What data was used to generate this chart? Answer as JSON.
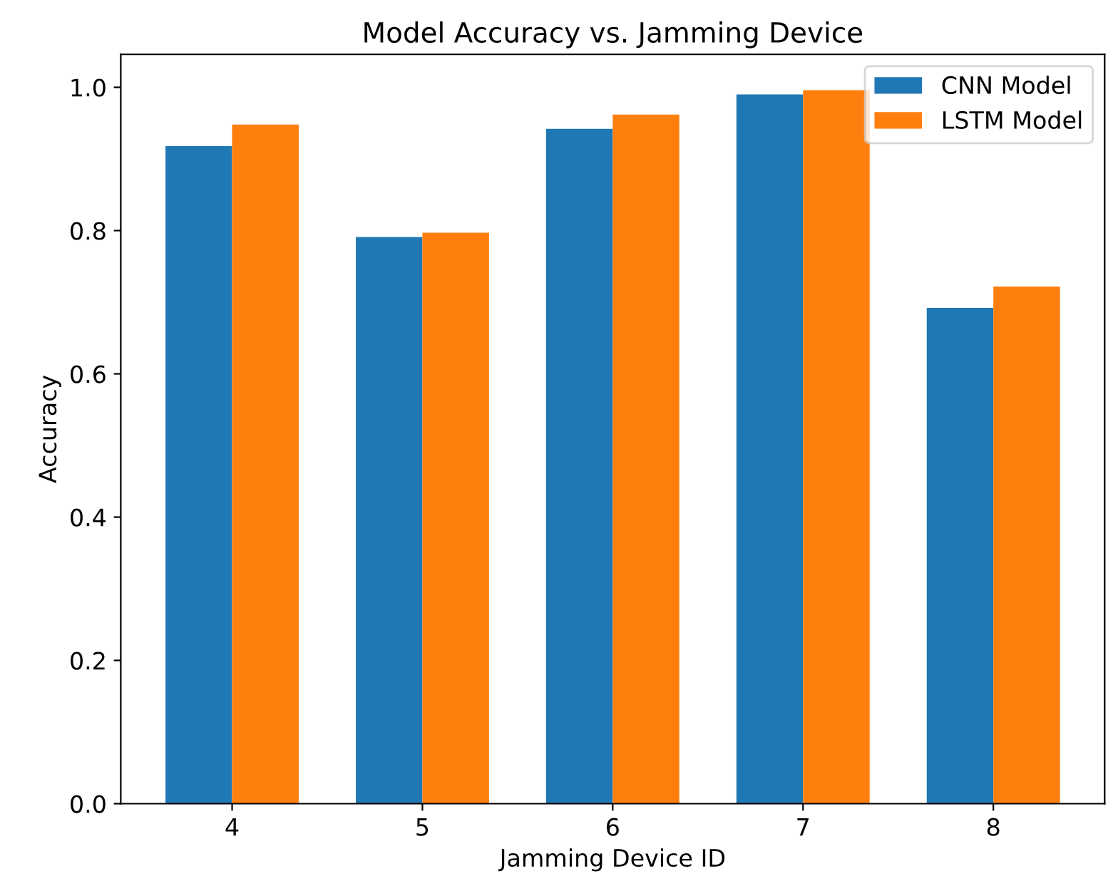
{
  "chart_data": {
    "type": "bar",
    "title": "Model Accuracy vs. Jamming Device",
    "xlabel": "Jamming Device ID",
    "ylabel": "Accuracy",
    "categories": [
      "4",
      "5",
      "6",
      "7",
      "8"
    ],
    "series": [
      {
        "name": "CNN Model",
        "color": "#1f77b4",
        "values": [
          0.918,
          0.791,
          0.942,
          0.99,
          0.692
        ]
      },
      {
        "name": "LSTM Model",
        "color": "#ff7f0e",
        "values": [
          0.948,
          0.797,
          0.962,
          0.996,
          0.722
        ]
      }
    ],
    "ylim": [
      0,
      1.046
    ],
    "yticks": [
      {
        "value": 0,
        "label": "0.0"
      },
      {
        "value": 0.2,
        "label": "0.2"
      },
      {
        "value": 0.4,
        "label": "0.4"
      },
      {
        "value": 0.6,
        "label": "0.6"
      },
      {
        "value": 0.8,
        "label": "0.8"
      },
      {
        "value": 1.0,
        "label": "1.0"
      }
    ],
    "grid": false,
    "legend": "top right"
  }
}
